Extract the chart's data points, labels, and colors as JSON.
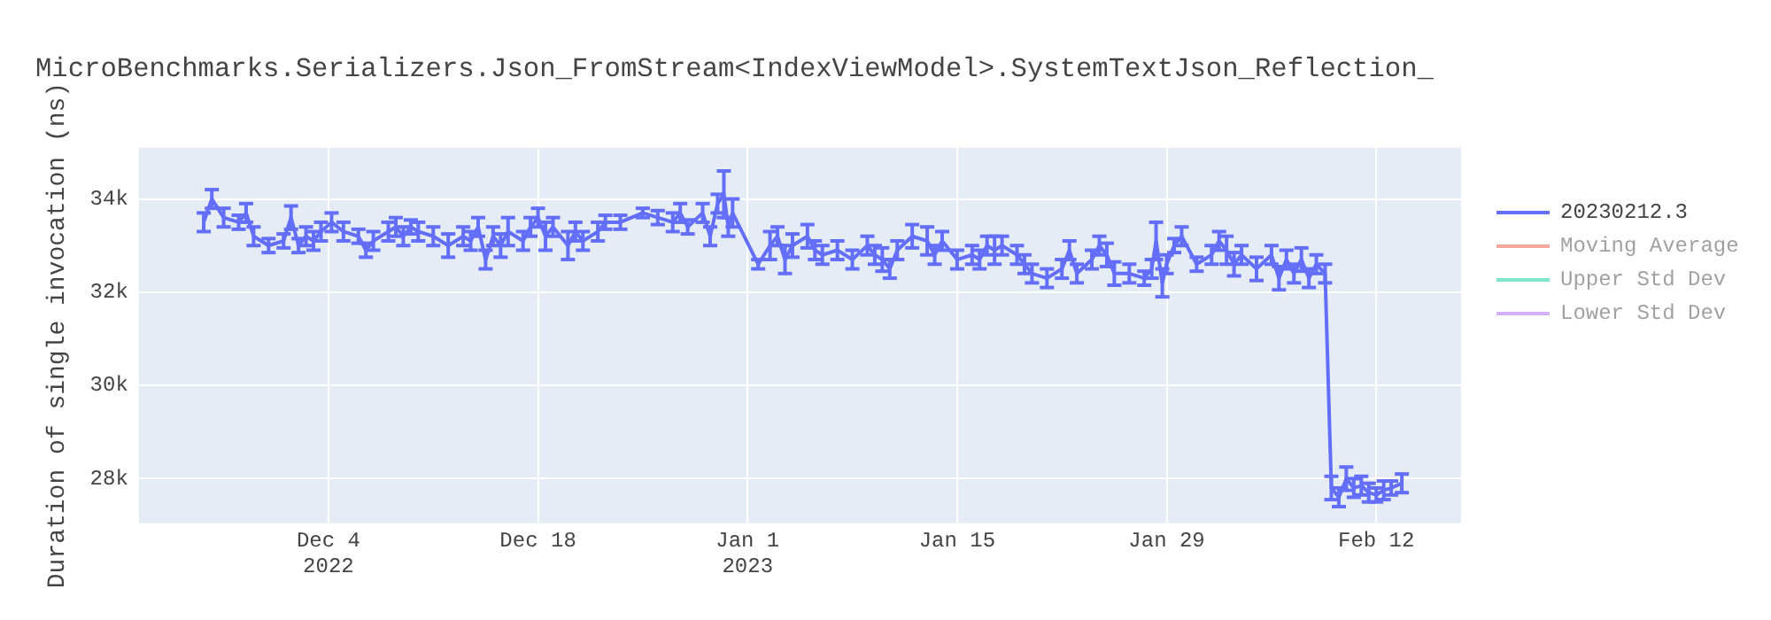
{
  "chart_data": {
    "type": "line",
    "title": "MicroBenchmarks.Serializers.Json_FromStream<IndexViewModel>.SystemTextJson_Reflection_",
    "ylabel": "Duration of single invocation (ns)",
    "legend": "top right",
    "grid": true,
    "line_style": "solid",
    "xlim": [
      "2022-11-21T08:00",
      "2023-02-17T16:00"
    ],
    "xticks": [
      {
        "value": "2022-12-04",
        "label": "Dec 4\n2022"
      },
      {
        "value": "2022-12-18",
        "label": "Dec 18"
      },
      {
        "value": "2023-01-01",
        "label": "Jan 1\n2023"
      },
      {
        "value": "2023-01-15",
        "label": "Jan 15"
      },
      {
        "value": "2023-01-29",
        "label": "Jan 29"
      },
      {
        "value": "2023-02-12",
        "label": "Feb 12"
      }
    ],
    "ylim": [
      27050,
      35100
    ],
    "yticks": [
      {
        "value": 28000,
        "label": "28k"
      },
      {
        "value": 30000,
        "label": "30k"
      },
      {
        "value": 32000,
        "label": "32k"
      },
      {
        "value": 34000,
        "label": "34k"
      }
    ],
    "series": [
      {
        "name": "20230212.3",
        "color": "#636efa",
        "x": [
          "2022-11-25T16:00",
          "2022-11-26T05:00",
          "2022-11-27",
          "2022-11-28",
          "2022-11-28T12:00",
          "2022-11-29",
          "2022-11-30",
          "2022-12-01",
          "2022-12-01T12:00",
          "2022-12-02",
          "2022-12-02T12:00",
          "2022-12-03",
          "2022-12-03T12:00",
          "2022-12-04T05:00",
          "2022-12-05",
          "2022-12-06",
          "2022-12-06T12:00",
          "2022-12-07",
          "2022-12-08",
          "2022-12-08T12:00",
          "2022-12-09",
          "2022-12-09T12:00",
          "2022-12-10",
          "2022-12-11",
          "2022-12-12",
          "2022-12-13",
          "2022-12-13T12:00",
          "2022-12-14",
          "2022-12-14T12:00",
          "2022-12-15",
          "2022-12-15T12:00",
          "2022-12-16",
          "2022-12-17",
          "2022-12-17T12:00",
          "2022-12-18",
          "2022-12-18T12:00",
          "2022-12-19",
          "2022-12-20",
          "2022-12-20T12:00",
          "2022-12-21",
          "2022-12-22",
          "2022-12-22T12:00",
          "2022-12-23T12:00",
          "2022-12-25",
          "2022-12-26",
          "2022-12-27",
          "2022-12-27T12:00",
          "2022-12-28",
          "2022-12-29",
          "2022-12-29T12:00",
          "2022-12-30",
          "2022-12-30T10:00",
          "2022-12-30T17:00",
          "2022-12-31",
          "2023-01-01T17:00",
          "2023-01-02T12:00",
          "2023-01-03",
          "2023-01-03T12:00",
          "2023-01-04",
          "2023-01-05",
          "2023-01-05T12:00",
          "2023-01-06",
          "2023-01-07",
          "2023-01-08",
          "2023-01-09",
          "2023-01-09T12:00",
          "2023-01-10",
          "2023-01-10T12:00",
          "2023-01-11",
          "2023-01-12",
          "2023-01-13",
          "2023-01-13T12:00",
          "2023-01-14",
          "2023-01-15",
          "2023-01-16",
          "2023-01-16T12:00",
          "2023-01-17",
          "2023-01-17T12:00",
          "2023-01-18",
          "2023-01-19",
          "2023-01-19T12:00",
          "2023-01-20",
          "2023-01-21",
          "2023-01-22",
          "2023-01-22T12:00",
          "2023-01-23",
          "2023-01-24",
          "2023-01-24T12:00",
          "2023-01-25",
          "2023-01-25T12:00",
          "2023-01-26T12:00",
          "2023-01-27T12:00",
          "2023-01-28",
          "2023-01-28T07:00",
          "2023-01-28T17:00",
          "2023-01-29",
          "2023-01-29T12:00",
          "2023-01-30",
          "2023-01-31",
          "2023-02-01",
          "2023-02-01T12:00",
          "2023-02-02",
          "2023-02-02T12:00",
          "2023-02-03",
          "2023-02-04",
          "2023-02-05",
          "2023-02-05T12:00",
          "2023-02-06",
          "2023-02-06T12:00",
          "2023-02-07",
          "2023-02-07T12:00",
          "2023-02-08",
          "2023-02-08T14:00",
          "2023-02-09",
          "2023-02-09T12:00",
          "2023-02-10",
          "2023-02-10T12:00",
          "2023-02-11",
          "2023-02-11T12:00",
          "2023-02-12",
          "2023-02-12T12:00",
          "2023-02-13",
          "2023-02-13T17:00"
        ],
        "values": [
          33500,
          34000,
          33600,
          33500,
          33700,
          33200,
          33000,
          33100,
          33600,
          33000,
          33200,
          33100,
          33300,
          33500,
          33300,
          33200,
          32900,
          33100,
          33300,
          33400,
          33200,
          33400,
          33300,
          33200,
          33000,
          33200,
          33100,
          33400,
          32700,
          33200,
          33000,
          33300,
          33100,
          33400,
          33600,
          33200,
          33400,
          33000,
          33300,
          33100,
          33300,
          33500,
          33500,
          33700,
          33600,
          33500,
          33700,
          33400,
          33700,
          33200,
          33900,
          34100,
          33400,
          33700,
          32600,
          33000,
          33200,
          32700,
          33000,
          33200,
          32900,
          32800,
          32900,
          32700,
          33000,
          32800,
          32700,
          32500,
          32900,
          33200,
          33100,
          32800,
          33100,
          32700,
          32800,
          32700,
          33000,
          32900,
          33000,
          32800,
          32600,
          32400,
          32300,
          32500,
          32900,
          32400,
          32700,
          33000,
          32800,
          32400,
          32400,
          32300,
          32500,
          33100,
          32200,
          32600,
          33000,
          33200,
          32600,
          32800,
          33100,
          32900,
          32600,
          32800,
          32500,
          32800,
          32300,
          32700,
          32400,
          32700,
          32300,
          32600,
          32400,
          27800,
          27600,
          28000,
          27800,
          27850,
          27700,
          27650,
          27750,
          27800,
          27900
        ],
        "errors": [
          200,
          200,
          200,
          150,
          200,
          200,
          150,
          150,
          250,
          150,
          200,
          200,
          200,
          200,
          200,
          150,
          150,
          200,
          200,
          200,
          200,
          150,
          200,
          200,
          250,
          200,
          200,
          200,
          200,
          200,
          250,
          300,
          200,
          200,
          200,
          300,
          200,
          300,
          200,
          200,
          200,
          150,
          150,
          100,
          150,
          200,
          200,
          150,
          200,
          200,
          200,
          500,
          200,
          300,
          100,
          300,
          200,
          300,
          250,
          250,
          200,
          200,
          200,
          200,
          200,
          200,
          250,
          200,
          200,
          250,
          300,
          200,
          200,
          200,
          200,
          200,
          200,
          300,
          200,
          200,
          200,
          200,
          200,
          200,
          200,
          200,
          200,
          200,
          250,
          250,
          200,
          150,
          200,
          400,
          300,
          200,
          150,
          200,
          150,
          200,
          200,
          300,
          250,
          200,
          250,
          200,
          250,
          200,
          200,
          250,
          200,
          200,
          200,
          250,
          200,
          250,
          200,
          200,
          200,
          150,
          200,
          150,
          200
        ]
      },
      {
        "name": "Moving Average",
        "color": "#ef553b"
      },
      {
        "name": "Upper Std Dev",
        "color": "#00cc96"
      },
      {
        "name": "Lower Std Dev",
        "color": "#ab63fa"
      }
    ]
  }
}
